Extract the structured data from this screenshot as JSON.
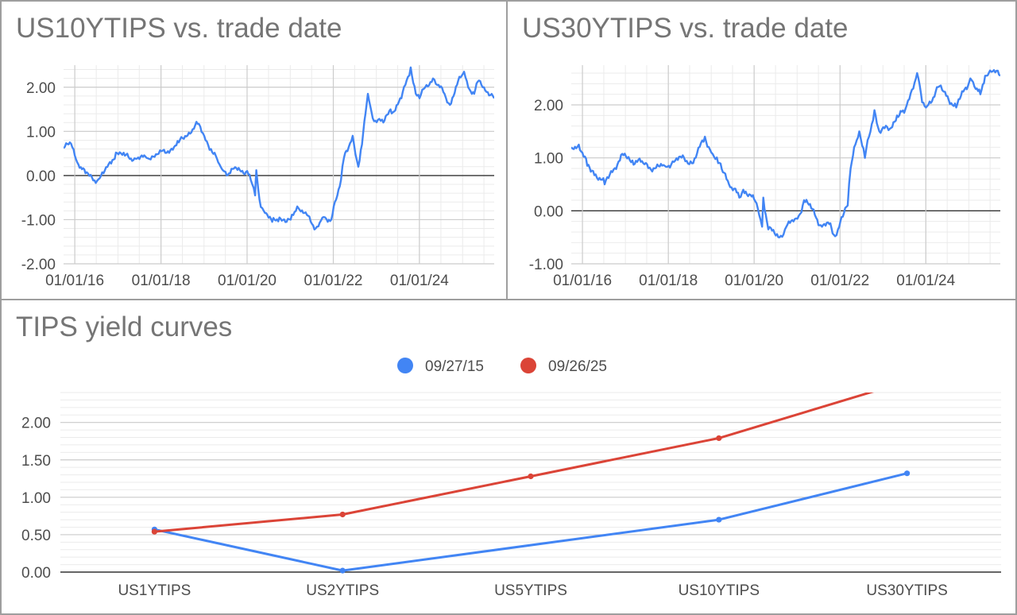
{
  "chart_data": [
    {
      "type": "line",
      "title": "US10YTIPS vs. trade date",
      "x_start": "2015-09-28",
      "x_end": "2025-09-26",
      "x_ticks": [
        "01/01/16",
        "01/01/18",
        "01/01/20",
        "01/01/22",
        "01/01/24"
      ],
      "y_ticks": [
        "2.00",
        "1.00",
        "0.00",
        "-1.00",
        "-2.00"
      ],
      "ylim": [
        -2,
        2.5
      ],
      "grid": true,
      "color": "#4285f4",
      "series": [
        {
          "x": [
            "2015-09-28",
            "2015-12-01",
            "2016-02-01",
            "2016-04-01",
            "2016-07-08",
            "2016-09-01",
            "2016-11-15",
            "2016-12-15",
            "2017-03-01",
            "2017-06-01",
            "2017-09-01",
            "2017-12-01",
            "2018-03-01",
            "2018-06-01",
            "2018-11-08",
            "2019-01-02",
            "2019-03-01",
            "2019-05-01",
            "2019-06-01",
            "2019-08-01",
            "2019-09-01",
            "2019-11-01",
            "2020-01-02",
            "2020-02-01",
            "2020-03-09",
            "2020-03-19",
            "2020-04-15",
            "2020-06-01",
            "2020-08-01",
            "2020-10-01",
            "2020-12-01",
            "2021-01-04",
            "2021-03-01",
            "2021-05-01",
            "2021-08-04",
            "2021-10-01",
            "2021-11-15",
            "2021-12-15",
            "2022-01-04",
            "2022-03-07",
            "2022-04-01",
            "2022-05-01",
            "2022-06-14",
            "2022-08-01",
            "2022-09-01",
            "2022-10-21",
            "2022-12-01",
            "2023-03-01",
            "2023-05-01",
            "2023-06-01",
            "2023-08-01",
            "2023-10-19",
            "2023-12-01",
            "2024-01-02",
            "2024-03-01",
            "2024-04-25",
            "2024-06-01",
            "2024-08-01",
            "2024-09-16",
            "2024-11-15",
            "2025-01-14",
            "2025-03-01",
            "2025-04-09",
            "2025-05-20",
            "2025-07-01",
            "2025-09-26"
          ],
          "values": [
            0.62,
            0.72,
            0.25,
            0.05,
            -0.12,
            0.05,
            0.35,
            0.52,
            0.45,
            0.38,
            0.4,
            0.48,
            0.55,
            0.75,
            1.17,
            0.9,
            0.6,
            0.3,
            0.15,
            0.05,
            0.15,
            0.12,
            0.1,
            -0.1,
            -0.45,
            0.12,
            -0.55,
            -0.85,
            -1.05,
            -0.95,
            -1.05,
            -1.0,
            -0.7,
            -0.85,
            -1.2,
            -0.95,
            -1.05,
            -1.0,
            -0.7,
            -0.1,
            0.4,
            0.55,
            0.9,
            0.2,
            0.7,
            1.85,
            1.3,
            1.2,
            1.5,
            1.45,
            1.75,
            2.45,
            1.85,
            1.75,
            2.05,
            2.2,
            2.05,
            1.85,
            1.6,
            2.05,
            2.35,
            1.95,
            1.85,
            2.15,
            2.0,
            1.75
          ]
        }
      ]
    },
    {
      "type": "line",
      "title": "US30YTIPS vs. trade date",
      "x_start": "2015-09-28",
      "x_end": "2025-09-26",
      "x_ticks": [
        "01/01/16",
        "01/01/18",
        "01/01/20",
        "01/01/22",
        "01/01/24"
      ],
      "y_ticks": [
        "2.00",
        "1.00",
        "0.00",
        "-1.00"
      ],
      "ylim": [
        -1,
        2.75
      ],
      "grid": true,
      "color": "#4285f4",
      "series": [
        {
          "x": [
            "2015-09-28",
            "2015-12-01",
            "2016-02-11",
            "2016-04-01",
            "2016-07-08",
            "2016-09-01",
            "2016-11-15",
            "2016-12-15",
            "2017-03-01",
            "2017-06-01",
            "2017-09-08",
            "2017-12-01",
            "2018-03-01",
            "2018-05-15",
            "2018-08-01",
            "2018-11-08",
            "2019-01-02",
            "2019-03-01",
            "2019-05-01",
            "2019-06-01",
            "2019-08-28",
            "2019-10-01",
            "2019-12-01",
            "2020-02-01",
            "2020-03-09",
            "2020-03-19",
            "2020-05-01",
            "2020-08-04",
            "2020-10-01",
            "2020-12-01",
            "2021-01-04",
            "2021-03-01",
            "2021-05-01",
            "2021-08-01",
            "2021-10-01",
            "2021-11-08",
            "2021-12-15",
            "2022-01-04",
            "2022-03-07",
            "2022-04-01",
            "2022-05-01",
            "2022-06-14",
            "2022-08-01",
            "2022-10-21",
            "2022-12-01",
            "2023-03-01",
            "2023-05-01",
            "2023-07-01",
            "2023-10-19",
            "2023-12-01",
            "2024-01-02",
            "2024-04-25",
            "2024-06-01",
            "2024-09-16",
            "2024-11-15",
            "2025-01-14",
            "2025-03-01",
            "2025-04-09",
            "2025-05-20",
            "2025-07-01",
            "2025-09-26"
          ],
          "values": [
            1.2,
            1.25,
            0.85,
            0.75,
            0.5,
            0.75,
            0.95,
            1.05,
            0.95,
            0.9,
            0.8,
            0.85,
            0.95,
            1.0,
            0.9,
            1.4,
            1.1,
            0.9,
            0.7,
            0.5,
            0.25,
            0.4,
            0.3,
            0.05,
            -0.3,
            0.25,
            -0.35,
            -0.5,
            -0.3,
            -0.2,
            -0.15,
            0.2,
            0.05,
            -0.3,
            -0.25,
            -0.45,
            -0.35,
            -0.2,
            0.1,
            0.8,
            1.2,
            1.5,
            1.0,
            1.9,
            1.5,
            1.55,
            1.8,
            1.85,
            2.6,
            2.05,
            1.95,
            2.35,
            2.25,
            1.95,
            2.25,
            2.5,
            2.3,
            2.2,
            2.55,
            2.65,
            2.55
          ]
        }
      ]
    },
    {
      "type": "line",
      "title": "TIPS yield curves",
      "categories": [
        "US1YTIPS",
        "US2YTIPS",
        "US5YTIPS",
        "US10YTIPS",
        "US30YTIPS"
      ],
      "y_ticks": [
        "2.00",
        "1.50",
        "1.00",
        "0.50",
        "0.00"
      ],
      "ylim": [
        0,
        2.4
      ],
      "grid": true,
      "legend_position": "top",
      "series": [
        {
          "name": "09/27/15",
          "color": "#4285f4",
          "values": [
            0.57,
            0.02,
            null,
            0.7,
            1.32
          ]
        },
        {
          "name": "09/26/25",
          "color": "#db4437",
          "values": [
            0.54,
            0.77,
            1.28,
            1.79,
            2.55
          ]
        }
      ]
    }
  ]
}
